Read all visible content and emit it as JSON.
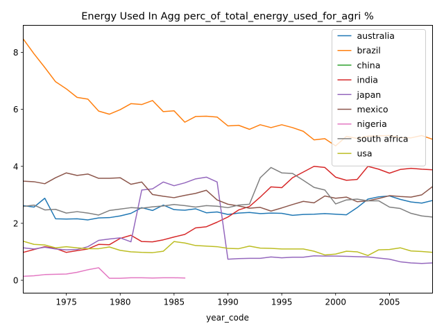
{
  "chart_data": {
    "type": "line",
    "title": "Energy Used In Agg perc_of_total_energy_used_for_agri %",
    "xlabel": "year_code",
    "ylabel": "",
    "xlim": [
      1971,
      2009
    ],
    "ylim": [
      -0.45,
      8.95
    ],
    "xticks": [
      1975,
      1980,
      1985,
      1990,
      1995,
      2000,
      2005
    ],
    "yticks": [
      0,
      2,
      4,
      6,
      8
    ],
    "grid": false,
    "legend": "top-right",
    "series": [
      {
        "name": "australia",
        "color": "#1f77b4",
        "x": [
          1971,
          1972,
          1973,
          1974,
          1975,
          1976,
          1977,
          1978,
          1979,
          1980,
          1981,
          1982,
          1983,
          1984,
          1985,
          1986,
          1987,
          1988,
          1989,
          1990,
          1991,
          1992,
          1993,
          1994,
          1995,
          1996,
          1997,
          1998,
          1999,
          2000,
          2001,
          2002,
          2003,
          2004,
          2005,
          2006,
          2007,
          2008,
          2009
        ],
        "y": [
          2.62,
          2.57,
          2.88,
          2.16,
          2.15,
          2.16,
          2.12,
          2.19,
          2.2,
          2.26,
          2.35,
          2.55,
          2.45,
          2.64,
          2.48,
          2.46,
          2.51,
          2.37,
          2.4,
          2.31,
          2.36,
          2.38,
          2.34,
          2.36,
          2.35,
          2.28,
          2.31,
          2.32,
          2.34,
          2.32,
          2.3,
          2.55,
          2.85,
          2.93,
          2.96,
          2.84,
          2.75,
          2.71,
          2.8
        ]
      },
      {
        "name": "brazil",
        "color": "#ff7f0e",
        "x": [
          1971,
          1972,
          1973,
          1974,
          1975,
          1976,
          1977,
          1978,
          1979,
          1980,
          1981,
          1982,
          1983,
          1984,
          1985,
          1986,
          1987,
          1988,
          1989,
          1990,
          1991,
          1992,
          1993,
          1994,
          1995,
          1996,
          1997,
          1998,
          1999,
          2000,
          2001,
          2002,
          2003,
          2004,
          2005,
          2006,
          2007,
          2008,
          2009
        ],
        "y": [
          8.47,
          7.95,
          7.47,
          6.97,
          6.72,
          6.42,
          6.36,
          5.94,
          5.83,
          5.99,
          6.2,
          6.17,
          6.31,
          5.92,
          5.95,
          5.55,
          5.75,
          5.76,
          5.73,
          5.42,
          5.44,
          5.3,
          5.46,
          5.36,
          5.46,
          5.36,
          5.23,
          4.93,
          4.97,
          4.72,
          5.05,
          4.98,
          5.06,
          5.07,
          5.08,
          5.01,
          5.0,
          5.08,
          4.95
        ]
      },
      {
        "name": "china",
        "color": "#2ca02c",
        "x": [],
        "y": []
      },
      {
        "name": "india",
        "color": "#d62728",
        "x": [
          1971,
          1972,
          1973,
          1974,
          1975,
          1976,
          1977,
          1978,
          1979,
          1980,
          1981,
          1982,
          1983,
          1984,
          1985,
          1986,
          1987,
          1988,
          1989,
          1990,
          1991,
          1992,
          1993,
          1994,
          1995,
          1996,
          1997,
          1998,
          1999,
          2000,
          2001,
          2002,
          2003,
          2004,
          2005,
          2006,
          2007,
          2008,
          2009
        ],
        "y": [
          0.98,
          1.08,
          1.18,
          1.12,
          0.98,
          1.04,
          1.1,
          1.26,
          1.25,
          1.47,
          1.58,
          1.36,
          1.35,
          1.42,
          1.52,
          1.61,
          1.84,
          1.88,
          2.04,
          2.22,
          2.47,
          2.59,
          2.92,
          3.28,
          3.25,
          3.6,
          3.8,
          4.0,
          3.96,
          3.62,
          3.51,
          3.54,
          4.0,
          3.9,
          3.76,
          3.89,
          3.93,
          3.9,
          3.88
        ]
      },
      {
        "name": "japan",
        "color": "#9467bd",
        "x": [
          1971,
          1972,
          1973,
          1974,
          1975,
          1976,
          1977,
          1978,
          1979,
          1980,
          1981,
          1982,
          1983,
          1984,
          1985,
          1986,
          1987,
          1988,
          1989,
          1990,
          1991,
          1992,
          1993,
          1994,
          1995,
          1996,
          1997,
          1998,
          1999,
          2000,
          2001,
          2002,
          2003,
          2004,
          2005,
          2006,
          2007,
          2008,
          2009
        ],
        "y": [
          1.14,
          1.1,
          1.16,
          1.1,
          1.07,
          1.08,
          1.18,
          1.4,
          1.45,
          1.49,
          1.35,
          3.17,
          3.21,
          3.45,
          3.32,
          3.42,
          3.56,
          3.62,
          3.45,
          0.74,
          0.76,
          0.77,
          0.77,
          0.82,
          0.79,
          0.81,
          0.81,
          0.86,
          0.85,
          0.85,
          0.84,
          0.83,
          0.82,
          0.78,
          0.74,
          0.65,
          0.61,
          0.59,
          0.61
        ]
      },
      {
        "name": "mexico",
        "color": "#8c564b",
        "x": [
          1971,
          1972,
          1973,
          1974,
          1975,
          1976,
          1977,
          1978,
          1979,
          1980,
          1981,
          1982,
          1983,
          1984,
          1985,
          1986,
          1987,
          1988,
          1989,
          1990,
          1991,
          1992,
          1993,
          1994,
          1995,
          1996,
          1997,
          1998,
          1999,
          2000,
          2001,
          2002,
          2003,
          2004,
          2005,
          2006,
          2007,
          2008,
          2009
        ],
        "y": [
          3.48,
          3.46,
          3.39,
          3.6,
          3.77,
          3.68,
          3.73,
          3.58,
          3.58,
          3.6,
          3.37,
          3.45,
          3.01,
          2.95,
          2.9,
          2.98,
          3.05,
          3.16,
          2.82,
          2.67,
          2.61,
          2.53,
          2.56,
          2.43,
          2.54,
          2.66,
          2.77,
          2.72,
          2.96,
          2.88,
          2.92,
          2.76,
          2.79,
          2.87,
          2.97,
          2.94,
          2.92,
          3.0,
          3.29
        ]
      },
      {
        "name": "nigeria",
        "color": "#e377c2",
        "x": [
          1971,
          1972,
          1973,
          1974,
          1975,
          1976,
          1977,
          1978,
          1979,
          1980,
          1981,
          1982,
          1983,
          1984,
          1985,
          1986
        ],
        "y": [
          0.14,
          0.16,
          0.2,
          0.21,
          0.22,
          0.28,
          0.37,
          0.44,
          0.07,
          0.07,
          0.09,
          0.09,
          0.08,
          0.09,
          0.09,
          0.08
        ]
      },
      {
        "name": "south africa",
        "color": "#7f7f7f",
        "x": [
          1971,
          1972,
          1973,
          1974,
          1975,
          1976,
          1977,
          1978,
          1979,
          1980,
          1981,
          1982,
          1983,
          1984,
          1985,
          1986,
          1987,
          1988,
          1989,
          1990,
          1991,
          1992,
          1993,
          1994,
          1995,
          1996,
          1997,
          1998,
          1999,
          2000,
          2001,
          2002,
          2003,
          2004,
          2005,
          2006,
          2007,
          2008,
          2009
        ],
        "y": [
          2.59,
          2.64,
          2.47,
          2.49,
          2.36,
          2.41,
          2.36,
          2.29,
          2.45,
          2.5,
          2.55,
          2.53,
          2.58,
          2.61,
          2.66,
          2.62,
          2.57,
          2.62,
          2.6,
          2.55,
          2.64,
          2.67,
          3.6,
          3.96,
          3.77,
          3.75,
          3.51,
          3.26,
          3.17,
          2.68,
          2.82,
          2.85,
          2.79,
          2.79,
          2.57,
          2.52,
          2.35,
          2.26,
          2.22
        ]
      },
      {
        "name": "usa",
        "color": "#bcbd22",
        "x": [
          1971,
          1972,
          1973,
          1974,
          1975,
          1976,
          1977,
          1978,
          1979,
          1980,
          1981,
          1982,
          1983,
          1984,
          1985,
          1986,
          1987,
          1988,
          1989,
          1990,
          1991,
          1992,
          1993,
          1994,
          1995,
          1996,
          1997,
          1998,
          1999,
          2000,
          2001,
          2002,
          2003,
          2004,
          2005,
          2006,
          2007,
          2008,
          2009
        ],
        "y": [
          1.37,
          1.26,
          1.24,
          1.14,
          1.18,
          1.14,
          1.11,
          1.11,
          1.17,
          1.05,
          1.0,
          0.98,
          0.97,
          1.02,
          1.36,
          1.31,
          1.22,
          1.2,
          1.18,
          1.12,
          1.11,
          1.2,
          1.13,
          1.12,
          1.1,
          1.1,
          1.1,
          1.02,
          0.89,
          0.92,
          1.02,
          1.0,
          0.87,
          1.07,
          1.08,
          1.14,
          1.03,
          1.01,
          0.98
        ]
      }
    ]
  }
}
